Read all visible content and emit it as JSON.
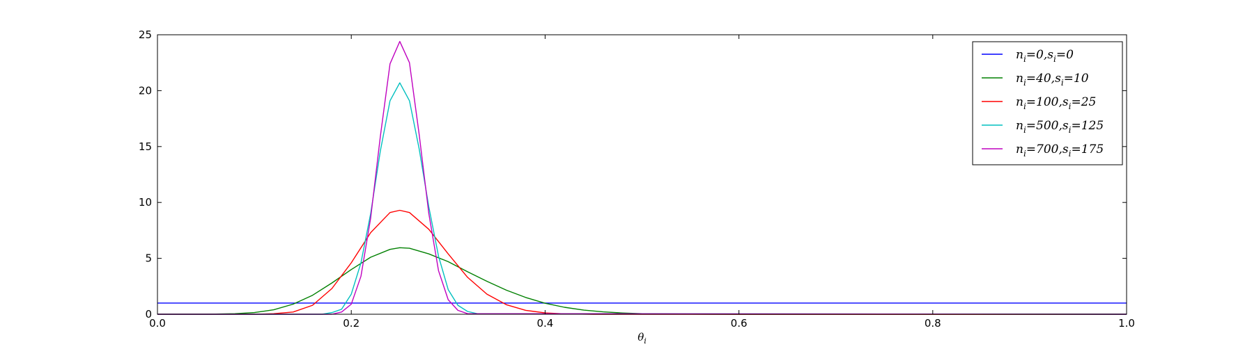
{
  "chart_data": {
    "type": "line",
    "title": "",
    "xlabel": "θi",
    "ylabel": "",
    "xlim": [
      0.0,
      1.0
    ],
    "ylim": [
      0,
      25
    ],
    "xticks": [
      {
        "value": 0.0,
        "label": "0.0"
      },
      {
        "value": 0.2,
        "label": "0.2"
      },
      {
        "value": 0.4,
        "label": "0.4"
      },
      {
        "value": 0.6,
        "label": "0.6"
      },
      {
        "value": 0.8,
        "label": "0.8"
      },
      {
        "value": 1.0,
        "label": "1.0"
      }
    ],
    "yticks": [
      {
        "value": 0,
        "label": "0"
      },
      {
        "value": 5,
        "label": "5"
      },
      {
        "value": 10,
        "label": "10"
      },
      {
        "value": 15,
        "label": "15"
      },
      {
        "value": 20,
        "label": "20"
      },
      {
        "value": 25,
        "label": "25"
      }
    ],
    "grid": false,
    "legend_position": "top-right",
    "series": [
      {
        "name": "ni=0,si=0",
        "color": "#0000ff",
        "x": [
          0.0,
          0.1,
          0.2,
          0.3,
          0.4,
          0.5,
          0.6,
          0.7,
          0.8,
          0.9,
          1.0
        ],
        "y": [
          1.0,
          1.0,
          1.0,
          1.0,
          1.0,
          1.0,
          1.0,
          1.0,
          1.0,
          1.0,
          1.0
        ]
      },
      {
        "name": "ni=40,si=10",
        "color": "#008000",
        "x": [
          0.0,
          0.05,
          0.08,
          0.1,
          0.12,
          0.14,
          0.16,
          0.18,
          0.2,
          0.22,
          0.24,
          0.25,
          0.26,
          0.28,
          0.3,
          0.32,
          0.34,
          0.36,
          0.38,
          0.4,
          0.42,
          0.44,
          0.46,
          0.48,
          0.5,
          0.55,
          0.6,
          1.0
        ],
        "y": [
          0.0,
          0.0,
          0.05,
          0.15,
          0.4,
          0.9,
          1.7,
          2.8,
          4.0,
          5.1,
          5.8,
          5.95,
          5.9,
          5.4,
          4.7,
          3.8,
          2.95,
          2.15,
          1.5,
          0.98,
          0.62,
          0.37,
          0.21,
          0.11,
          0.05,
          0.01,
          0.0,
          0.0
        ]
      },
      {
        "name": "ni=100,si=25",
        "color": "#ff0000",
        "x": [
          0.0,
          0.1,
          0.12,
          0.14,
          0.16,
          0.18,
          0.2,
          0.22,
          0.24,
          0.25,
          0.26,
          0.28,
          0.3,
          0.32,
          0.34,
          0.36,
          0.38,
          0.4,
          0.42,
          0.45,
          1.0
        ],
        "y": [
          0.0,
          0.0,
          0.05,
          0.2,
          0.8,
          2.3,
          4.6,
          7.3,
          9.1,
          9.3,
          9.1,
          7.6,
          5.4,
          3.3,
          1.8,
          0.85,
          0.35,
          0.12,
          0.04,
          0.0,
          0.0
        ]
      },
      {
        "name": "ni=500,si=125",
        "color": "#00bfbf",
        "x": [
          0.0,
          0.17,
          0.18,
          0.19,
          0.2,
          0.21,
          0.22,
          0.23,
          0.24,
          0.25,
          0.26,
          0.27,
          0.28,
          0.29,
          0.3,
          0.31,
          0.32,
          0.33,
          1.0
        ],
        "y": [
          0.0,
          0.0,
          0.15,
          0.45,
          1.8,
          4.6,
          9.0,
          14.6,
          19.1,
          20.7,
          19.1,
          14.8,
          9.6,
          5.2,
          2.2,
          0.8,
          0.25,
          0.05,
          0.0
        ]
      },
      {
        "name": "ni=700,si=175",
        "color": "#bf00bf",
        "x": [
          0.0,
          0.18,
          0.19,
          0.2,
          0.21,
          0.22,
          0.23,
          0.24,
          0.25,
          0.26,
          0.27,
          0.28,
          0.29,
          0.3,
          0.31,
          0.32,
          1.0
        ],
        "y": [
          0.0,
          0.0,
          0.2,
          0.9,
          3.4,
          8.6,
          15.9,
          22.4,
          24.4,
          22.5,
          16.1,
          9.0,
          3.9,
          1.3,
          0.35,
          0.05,
          0.0
        ]
      }
    ]
  },
  "legend": {
    "items": [
      {
        "n": "0",
        "s": "0"
      },
      {
        "n": "40",
        "s": "10"
      },
      {
        "n": "100",
        "s": "25"
      },
      {
        "n": "500",
        "s": "125"
      },
      {
        "n": "700",
        "s": "175"
      }
    ]
  }
}
